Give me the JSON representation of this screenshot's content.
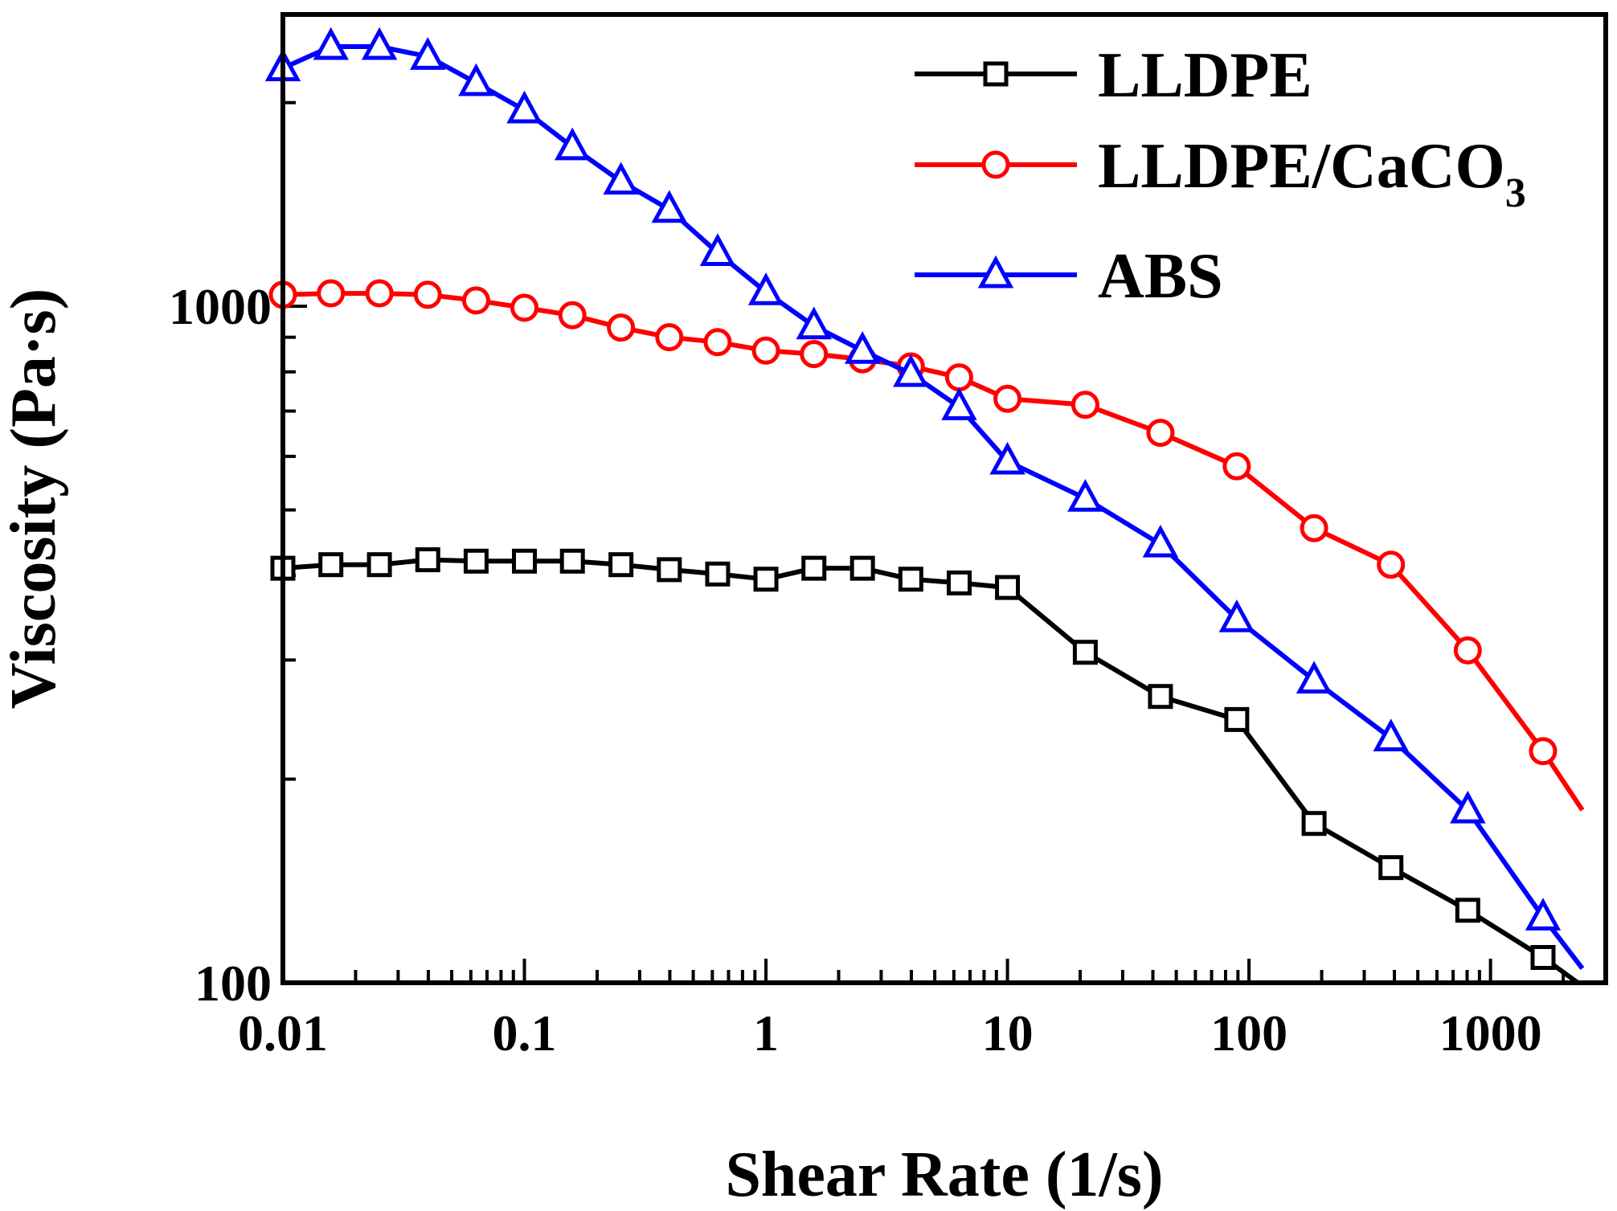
{
  "chart_data": {
    "type": "line",
    "xscale": "log",
    "yscale": "log",
    "xlabel": "Shear Rate (1/s)",
    "ylabel": "Viscosity (Pa·s)",
    "xlim": [
      0.01,
      3000
    ],
    "ylim": [
      100,
      2700
    ],
    "x_ticks": [
      {
        "value": 0.01,
        "label": "0.01"
      },
      {
        "value": 0.1,
        "label": "0.1"
      },
      {
        "value": 1,
        "label": "1"
      },
      {
        "value": 10,
        "label": "10"
      },
      {
        "value": 100,
        "label": "100"
      },
      {
        "value": 1000,
        "label": "1000"
      }
    ],
    "y_ticks": [
      {
        "value": 100,
        "label": "100"
      },
      {
        "value": 1000,
        "label": "1000"
      }
    ],
    "legend_position": "top-right",
    "series": [
      {
        "name": "LLDPE",
        "legend_label": "LLDPE",
        "color": "#000000",
        "marker": "square",
        "points": [
          [
            0.01,
            410
          ],
          [
            0.0158,
            415
          ],
          [
            0.0251,
            415
          ],
          [
            0.0398,
            422
          ],
          [
            0.0631,
            420
          ],
          [
            0.1,
            420
          ],
          [
            0.158,
            420
          ],
          [
            0.251,
            415
          ],
          [
            0.398,
            408
          ],
          [
            0.631,
            402
          ],
          [
            1,
            395
          ],
          [
            1.58,
            410
          ],
          [
            2.51,
            410
          ],
          [
            3.98,
            395
          ],
          [
            6.31,
            390
          ],
          [
            10,
            384
          ],
          [
            21,
            308
          ],
          [
            43,
            265
          ],
          [
            89,
            245
          ],
          [
            186,
            172
          ],
          [
            387,
            148
          ],
          [
            805,
            128
          ],
          [
            1650,
            109
          ]
        ],
        "line_end": [
          2300,
          100
        ]
      },
      {
        "name": "LLDPE/CaCO3",
        "legend_label": "LLDPE/CaCO",
        "legend_subscript": "3",
        "color": "#ff0000",
        "marker": "circle",
        "points": [
          [
            0.01,
            1040
          ],
          [
            0.0158,
            1045
          ],
          [
            0.0251,
            1045
          ],
          [
            0.0398,
            1040
          ],
          [
            0.0631,
            1020
          ],
          [
            0.1,
            995
          ],
          [
            0.158,
            970
          ],
          [
            0.251,
            930
          ],
          [
            0.398,
            900
          ],
          [
            0.631,
            885
          ],
          [
            1,
            860
          ],
          [
            1.58,
            850
          ],
          [
            2.51,
            835
          ],
          [
            3.98,
            815
          ],
          [
            6.31,
            785
          ],
          [
            10,
            730
          ],
          [
            21,
            715
          ],
          [
            43,
            650
          ],
          [
            89,
            580
          ],
          [
            186,
            470
          ],
          [
            387,
            415
          ],
          [
            805,
            310
          ],
          [
            1650,
            220
          ]
        ],
        "line_end": [
          2400,
          180
        ]
      },
      {
        "name": "ABS",
        "legend_label": "ABS",
        "color": "#0000ff",
        "marker": "triangle",
        "points": [
          [
            0.01,
            2250
          ],
          [
            0.0158,
            2420
          ],
          [
            0.0251,
            2420
          ],
          [
            0.0398,
            2340
          ],
          [
            0.0631,
            2140
          ],
          [
            0.1,
            1950
          ],
          [
            0.158,
            1720
          ],
          [
            0.251,
            1530
          ],
          [
            0.398,
            1390
          ],
          [
            0.631,
            1200
          ],
          [
            1,
            1050
          ],
          [
            1.58,
            935
          ],
          [
            2.51,
            860
          ],
          [
            3.98,
            795
          ],
          [
            6.31,
            710
          ],
          [
            10,
            590
          ],
          [
            21,
            520
          ],
          [
            43,
            445
          ],
          [
            89,
            345
          ],
          [
            186,
            280
          ],
          [
            387,
            230
          ],
          [
            805,
            180
          ],
          [
            1650,
            125
          ]
        ],
        "line_end": [
          2400,
          105
        ]
      }
    ]
  }
}
